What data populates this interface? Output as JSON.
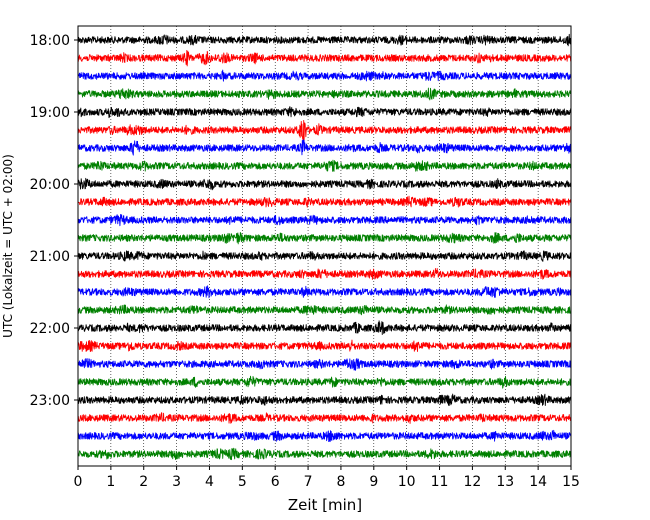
{
  "chart_data": {
    "type": "line",
    "chart_kind": "helicorder seismogram",
    "title": "",
    "xlabel": "Zeit  [min]",
    "ylabel": "UTC (Lokalzeit = UTC + 02:00)",
    "xlim": [
      0,
      15
    ],
    "x_ticks": [
      0,
      1,
      2,
      3,
      4,
      5,
      6,
      7,
      8,
      9,
      10,
      11,
      12,
      13,
      14,
      15
    ],
    "x_tick_labels": [
      "0",
      "1",
      "2",
      "3",
      "4",
      "5",
      "6",
      "7",
      "8",
      "9",
      "10",
      "11",
      "12",
      "13",
      "14",
      "15"
    ],
    "y_tick_labels": [
      "18:00",
      "19:00",
      "20:00",
      "21:00",
      "22:00",
      "23:00"
    ],
    "y_tick_trace_index": [
      0,
      4,
      8,
      12,
      16,
      20
    ],
    "trace_minutes": 15,
    "start_time": "18:00",
    "trace_count": 24,
    "color_cycle": [
      "#000000",
      "#ff0000",
      "#0000ff",
      "#008000"
    ],
    "grid": "vertical dotted lines at each minute",
    "legend": "none",
    "notable_events": [
      {
        "trace": "18:15",
        "x_min": 3.3,
        "relative_amplitude": 2.5
      },
      {
        "trace": "18:15",
        "x_min": 12.5,
        "relative_amplitude": 1.5
      },
      {
        "trace": "18:45",
        "x_min": 1.3,
        "relative_amplitude": 1.6
      },
      {
        "trace": "19:15",
        "x_min": 6.85,
        "relative_amplitude": 4.5
      },
      {
        "trace": "19:30",
        "x_min": 1.7,
        "relative_amplitude": 3.0
      },
      {
        "trace": "19:30",
        "x_min": 6.85,
        "relative_amplitude": 2.5
      },
      {
        "trace": "21:00",
        "x_min": 14.2,
        "relative_amplitude": 2.0
      },
      {
        "trace": "21:30",
        "x_min": 6.9,
        "relative_amplitude": 1.8
      },
      {
        "trace": "22:15",
        "x_min": 8.3,
        "relative_amplitude": 2.0
      },
      {
        "trace": "22:30",
        "x_min": 12.6,
        "relative_amplitude": 1.6
      }
    ]
  }
}
